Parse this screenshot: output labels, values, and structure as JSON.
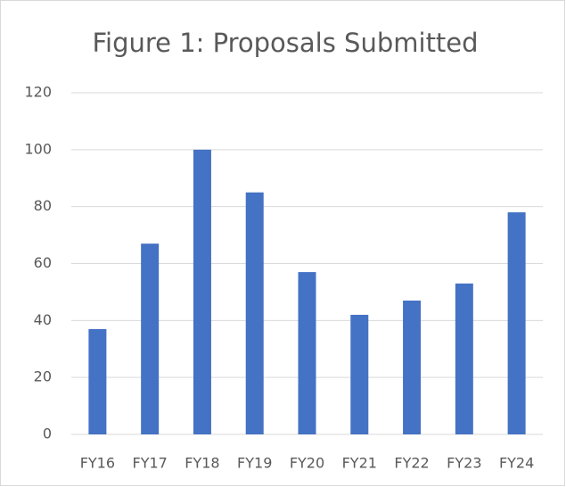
{
  "chart_data": {
    "type": "bar",
    "title": "Figure 1: Proposals Submitted",
    "categories": [
      "FY16",
      "FY17",
      "FY18",
      "FY19",
      "FY20",
      "FY21",
      "FY22",
      "FY23",
      "FY24"
    ],
    "values": [
      37,
      67,
      100,
      85,
      57,
      42,
      47,
      53,
      78
    ],
    "color": "#4472c4",
    "ylim": [
      0,
      120
    ],
    "yticks": [
      0,
      20,
      40,
      60,
      80,
      100,
      120
    ],
    "grid": true
  }
}
